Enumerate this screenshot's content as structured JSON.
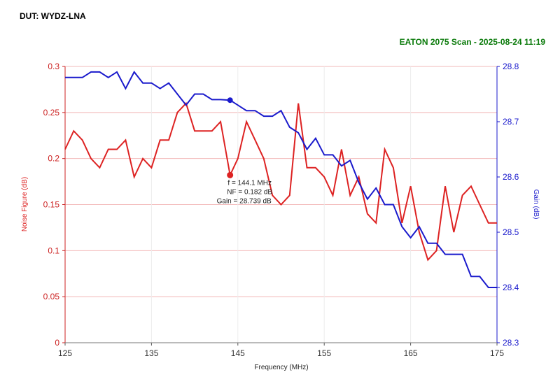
{
  "header": {
    "dut_label": "DUT: WYDZ-LNA",
    "scan_label": "EATON 2075 Scan - 2025-08-24 11:19",
    "scan_color": "#0a7a0a"
  },
  "chart_data": {
    "type": "line",
    "xlabel": "Frequency (MHz)",
    "ylabel_left": "Noise Figure (dB)",
    "ylabel_right": "Gain (dB)",
    "xlim": [
      125,
      175
    ],
    "ylim_left": [
      0,
      0.3
    ],
    "ylim_right": [
      28.3,
      28.8
    ],
    "x_ticks": [
      "125",
      "135",
      "145",
      "155",
      "165",
      "175"
    ],
    "y_left_ticks": [
      "0",
      "0.05",
      "0.1",
      "0.15",
      "0.2",
      "0.25",
      "0.3"
    ],
    "y_right_ticks": [
      "28.3",
      "28.4",
      "28.5",
      "28.6",
      "28.7",
      "28.8"
    ],
    "grid": true,
    "series": [
      {
        "name": "Noise Figure (dB)",
        "axis": "left",
        "color": "#dd2222",
        "x": [
          125,
          126,
          127,
          128,
          129,
          130,
          131,
          132,
          133,
          134,
          135,
          136,
          137,
          138,
          139,
          140,
          141,
          142,
          143,
          144.1,
          145,
          146,
          147,
          148,
          149,
          150,
          151,
          152,
          153,
          154,
          155,
          156,
          157,
          158,
          159,
          160,
          161,
          162,
          163,
          164,
          165,
          166,
          167,
          168,
          169,
          170,
          171,
          172,
          173,
          174,
          175
        ],
        "values": [
          0.21,
          0.23,
          0.22,
          0.2,
          0.19,
          0.21,
          0.21,
          0.22,
          0.18,
          0.2,
          0.19,
          0.22,
          0.22,
          0.25,
          0.26,
          0.23,
          0.23,
          0.23,
          0.24,
          0.182,
          0.2,
          0.24,
          0.22,
          0.2,
          0.16,
          0.15,
          0.16,
          0.26,
          0.19,
          0.19,
          0.18,
          0.16,
          0.21,
          0.16,
          0.18,
          0.14,
          0.13,
          0.21,
          0.19,
          0.13,
          0.17,
          0.12,
          0.09,
          0.1,
          0.17,
          0.12,
          0.16,
          0.17,
          0.15,
          0.13,
          0.13
        ]
      },
      {
        "name": "Gain (dB)",
        "axis": "right",
        "color": "#1a1acc",
        "x": [
          125,
          126,
          127,
          128,
          129,
          130,
          131,
          132,
          133,
          134,
          135,
          136,
          137,
          138,
          139,
          140,
          141,
          142,
          143,
          144.1,
          145,
          146,
          147,
          148,
          149,
          150,
          151,
          152,
          153,
          154,
          155,
          156,
          157,
          158,
          159,
          160,
          161,
          162,
          163,
          164,
          165,
          166,
          167,
          168,
          169,
          170,
          171,
          172,
          173,
          174,
          175
        ],
        "values": [
          28.78,
          28.78,
          28.78,
          28.79,
          28.79,
          28.78,
          28.79,
          28.76,
          28.79,
          28.77,
          28.77,
          28.76,
          28.77,
          28.75,
          28.73,
          28.75,
          28.75,
          28.74,
          28.74,
          28.739,
          28.73,
          28.72,
          28.72,
          28.71,
          28.71,
          28.72,
          28.69,
          28.68,
          28.65,
          28.67,
          28.64,
          28.64,
          28.62,
          28.63,
          28.59,
          28.56,
          28.58,
          28.55,
          28.55,
          28.51,
          28.49,
          28.51,
          28.48,
          28.48,
          28.46,
          28.46,
          28.46,
          28.42,
          28.42,
          28.4,
          28.4
        ]
      }
    ],
    "marker": {
      "x": 144.1,
      "nf": 0.182,
      "gain": 28.739,
      "lines": [
        "f = 144.1 MHz",
        "NF = 0.182 dB",
        "Gain = 28.739 dB"
      ]
    }
  }
}
